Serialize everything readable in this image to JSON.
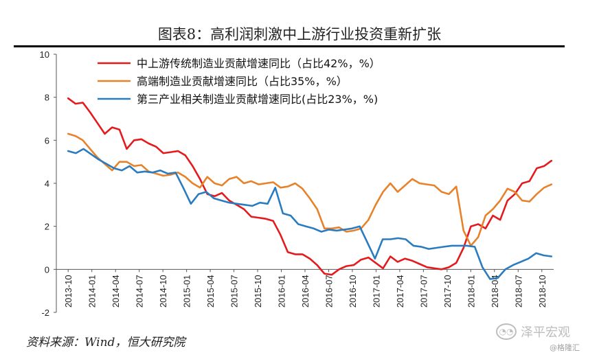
{
  "title": "图表8：高利润刺激中上游行业投资重新扩张",
  "source": "资料来源：Wind，恒大研究院",
  "watermark": {
    "brand": "泽平宏观",
    "sub": "@格隆汇"
  },
  "chart_data": {
    "type": "line",
    "ylim": [
      -2,
      10
    ],
    "yticks": [
      -2,
      0,
      2,
      4,
      6,
      8,
      10
    ],
    "x_tick_labels": [
      "2013-10",
      "2014-01",
      "2014-04",
      "2014-07",
      "2014-10",
      "2015-01",
      "2015-04",
      "2015-07",
      "2015-10",
      "2016-01",
      "2016-04",
      "2016-07",
      "2016-10",
      "2017-01",
      "2017-04",
      "2017-07",
      "2017-10",
      "2018-01",
      "2018-04",
      "2018-07",
      "2018-10"
    ],
    "legend_position": "top-left",
    "colors": {
      "red": "#e41a1c",
      "orange": "#e8822a",
      "blue": "#2a7bbf"
    },
    "series": [
      {
        "name": "中上游传统制造业贡献增速同比（占比42%，%）",
        "color": "#e41a1c",
        "values": [
          7.95,
          7.7,
          7.75,
          7.3,
          6.8,
          6.3,
          6.6,
          6.5,
          5.6,
          6.0,
          6.05,
          5.85,
          5.7,
          5.4,
          5.45,
          5.5,
          5.3,
          4.8,
          4.2,
          3.5,
          3.4,
          3.55,
          3.2,
          3.0,
          2.8,
          2.45,
          2.4,
          2.35,
          2.25,
          1.6,
          0.8,
          0.7,
          0.7,
          0.5,
          0.2,
          -0.2,
          -0.25,
          0.0,
          0.15,
          0.2,
          0.45,
          0.55,
          0.3,
          0.05,
          0.6,
          0.35,
          0.5,
          0.4,
          0.25,
          0.1,
          0.05,
          0.0,
          0.1,
          0.3,
          1.0,
          2.0,
          2.1,
          1.9,
          2.5,
          2.3,
          3.2,
          3.5,
          4.0,
          4.1,
          4.7,
          4.8,
          5.05
        ]
      },
      {
        "name": "高端制造业贡献增速同比（占比35%，%）",
        "color": "#e8822a",
        "values": [
          6.3,
          6.2,
          6.0,
          5.6,
          5.2,
          4.9,
          4.6,
          5.0,
          5.0,
          4.8,
          4.85,
          4.55,
          4.45,
          4.35,
          4.4,
          4.5,
          4.3,
          4.0,
          3.8,
          4.3,
          4.0,
          3.9,
          4.2,
          4.3,
          4.0,
          4.1,
          3.95,
          4.0,
          4.05,
          3.8,
          3.85,
          4.0,
          3.75,
          3.3,
          2.8,
          1.9,
          1.9,
          1.95,
          1.75,
          1.8,
          1.9,
          2.3,
          3.0,
          3.6,
          4.0,
          3.6,
          3.9,
          4.2,
          4.0,
          3.95,
          3.9,
          3.6,
          3.5,
          3.85,
          1.8,
          1.1,
          1.5,
          2.5,
          2.8,
          3.2,
          3.75,
          3.6,
          3.2,
          3.15,
          3.5,
          3.8,
          3.95
        ]
      },
      {
        "name": "第三产业相关制造业贡献增速同比(占比23%，%)",
        "color": "#2a7bbf",
        "values": [
          5.5,
          5.4,
          5.6,
          5.35,
          5.1,
          4.9,
          4.7,
          4.6,
          4.8,
          4.5,
          4.55,
          4.5,
          4.6,
          4.45,
          4.5,
          3.8,
          3.05,
          3.5,
          3.6,
          3.3,
          3.2,
          3.1,
          3.05,
          3.0,
          2.95,
          3.1,
          3.05,
          3.8,
          2.6,
          2.5,
          2.1,
          2.0,
          1.9,
          1.75,
          1.85,
          1.8,
          1.85,
          1.9,
          2.0,
          1.25,
          0.5,
          1.4,
          1.4,
          1.45,
          1.4,
          1.1,
          1.05,
          0.95,
          1.0,
          1.05,
          1.1,
          1.1,
          1.1,
          1.05,
          0.1,
          -0.45,
          -0.4,
          0.0,
          0.2,
          0.35,
          0.5,
          0.75,
          0.65,
          0.6
        ]
      }
    ]
  }
}
